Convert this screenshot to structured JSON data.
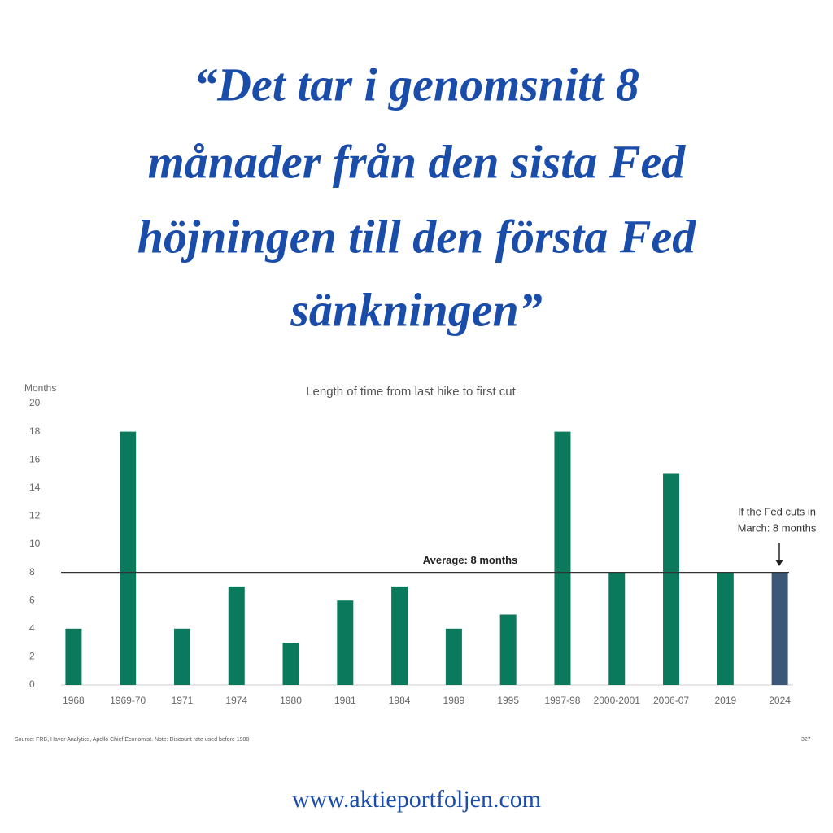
{
  "headline": [
    "“Det tar i genomsnitt 8",
    "månader från den sista Fed",
    "höjningen till den första Fed",
    "sänkningen”"
  ],
  "chart_data": {
    "type": "bar",
    "title": "Length of time from last hike to first cut",
    "y_label": "Months",
    "categories": [
      "1968",
      "1969-70",
      "1971",
      "1974",
      "1980",
      "1981",
      "1984",
      "1989",
      "1995",
      "1997-98",
      "2000-2001",
      "2006-07",
      "2019",
      "2024"
    ],
    "values": [
      4,
      18,
      4,
      7,
      3,
      6,
      7,
      4,
      5,
      18,
      8,
      15,
      8,
      8
    ],
    "colors": [
      "#0b7a5c",
      "#0b7a5c",
      "#0b7a5c",
      "#0b7a5c",
      "#0b7a5c",
      "#0b7a5c",
      "#0b7a5c",
      "#0b7a5c",
      "#0b7a5c",
      "#0b7a5c",
      "#0b7a5c",
      "#0b7a5c",
      "#0b7a5c",
      "#3b5876"
    ],
    "ylim": [
      0,
      20
    ],
    "yticks": [
      0,
      2,
      4,
      6,
      8,
      10,
      12,
      14,
      16,
      18,
      20
    ],
    "grid": false,
    "average": 8,
    "average_label": "Average: 8 months",
    "annotation": [
      "If the Fed cuts in",
      "March: 8 months"
    ],
    "source": "Source: FRB, Haver Analytics, Apollo Chief Economist. Note: Discount rate used before 1988",
    "page_number": "327"
  },
  "footer": "www.aktieportfoljen.com"
}
